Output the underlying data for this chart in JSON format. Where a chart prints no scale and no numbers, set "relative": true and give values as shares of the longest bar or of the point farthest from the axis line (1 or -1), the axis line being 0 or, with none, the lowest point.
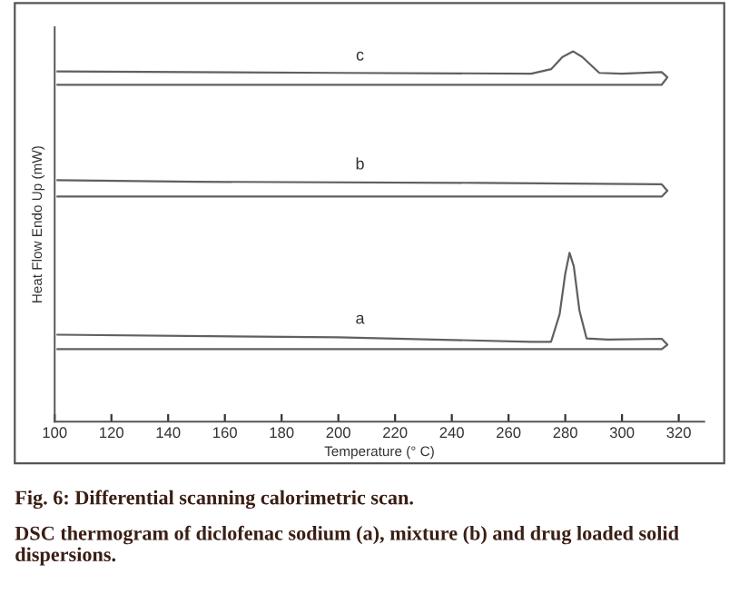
{
  "chart_data": {
    "type": "line",
    "relative": true,
    "xlabel": "Temperature (° C)",
    "ylabel": "Heat Flow Endo Up (mW)",
    "xlim": [
      100,
      329
    ],
    "xticks": [
      100,
      120,
      140,
      160,
      180,
      200,
      220,
      240,
      260,
      280,
      300,
      320
    ],
    "series": [
      {
        "name": "a",
        "color": "#606060",
        "x": [
          101,
          200,
          268,
          275,
          278,
          280,
          281.5,
          283,
          285,
          287.5,
          295,
          314,
          316,
          314,
          250,
          101
        ],
        "values": [
          0.235,
          0.228,
          0.216,
          0.216,
          0.29,
          0.4,
          0.456,
          0.42,
          0.3,
          0.225,
          0.222,
          0.224,
          0.208,
          0.196,
          0.196,
          0.196
        ]
      },
      {
        "name": "b",
        "color": "#606060",
        "x": [
          101,
          150,
          250,
          314,
          316,
          314,
          200,
          101
        ],
        "values": [
          0.652,
          0.648,
          0.645,
          0.641,
          0.624,
          0.608,
          0.608,
          0.608
        ]
      },
      {
        "name": "c",
        "color": "#606060",
        "x": [
          101,
          200,
          268,
          275,
          279,
          282.8,
          286,
          292,
          300,
          314,
          316,
          314,
          200,
          101
        ],
        "values": [
          0.946,
          0.942,
          0.94,
          0.952,
          0.985,
          1.0,
          0.985,
          0.942,
          0.94,
          0.944,
          0.93,
          0.91,
          0.91,
          0.91
        ]
      }
    ],
    "grid": false,
    "legend": false,
    "marker": "none",
    "line_style": "solid",
    "annotations": [
      "Fig. 6: Differential scanning calorimetric scan.",
      "DSC thermogram of diclofenac sodium (a), mixture (b) and drug loaded solid dispersions."
    ]
  }
}
